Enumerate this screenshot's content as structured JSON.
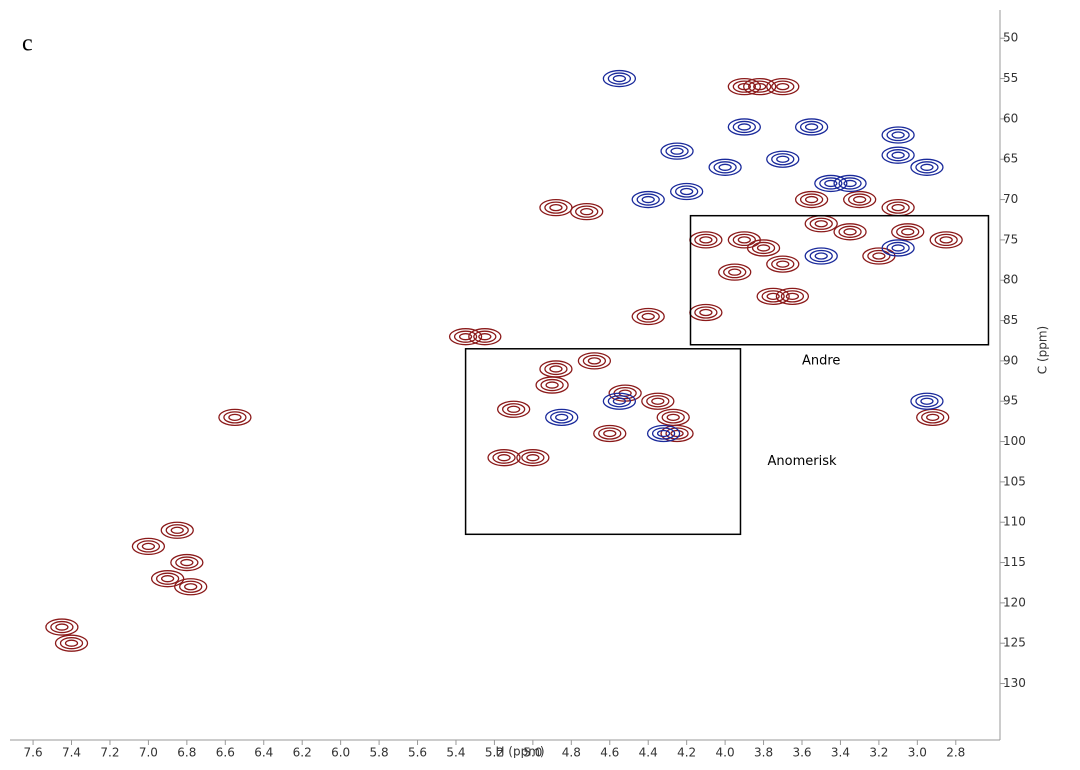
{
  "chart_data": {
    "type": "contour-peaks",
    "panel_label": "c",
    "x_label": "H (ppm)",
    "y_label": "C (ppm)",
    "xlim": [
      7.72,
      2.57
    ],
    "ylim": [
      137,
      46.5
    ],
    "xticks": [
      7.6,
      7.4,
      7.2,
      {
        "value": 7,
        "label": "7.0"
      },
      6.8,
      6.6,
      6.4,
      6.2,
      {
        "value": 6,
        "label": "6.0"
      },
      5.8,
      5.6,
      5.4,
      5.2,
      {
        "value": 5,
        "label": "5.0"
      },
      4.8,
      4.6,
      4.4,
      4.2,
      {
        "value": 4,
        "label": "4.0"
      },
      3.8,
      3.6,
      3.4,
      3.2,
      {
        "value": 3,
        "label": "3.0"
      },
      2.8
    ],
    "yticks": [
      50,
      55,
      60,
      65,
      70,
      75,
      80,
      85,
      90,
      95,
      100,
      105,
      110,
      115,
      120,
      125,
      130
    ],
    "series": [
      {
        "color": "#8b1a1a",
        "x": [
          6.85,
          6.8,
          6.78,
          7.0,
          6.9,
          7.4,
          7.45,
          6.55,
          5.35,
          5.25,
          4.88,
          4.72,
          4.9,
          4.88,
          4.68,
          4.52,
          4.35,
          4.27,
          4.25,
          5.15,
          5.0,
          4.6,
          5.1,
          4.4,
          4.1,
          3.82,
          3.9,
          3.7,
          4.1,
          3.9,
          3.8,
          3.55,
          3.3,
          3.1,
          3.5,
          3.2,
          3.05,
          2.85,
          3.75,
          3.95,
          3.65,
          2.92,
          3.7,
          3.35
        ],
        "values": [
          111,
          115,
          118,
          113,
          117,
          125,
          123,
          97,
          87,
          87,
          71,
          71.5,
          93,
          91,
          90,
          94,
          95,
          97,
          99,
          102,
          102,
          99,
          96,
          84.5,
          84,
          56,
          56,
          56,
          75,
          75,
          76,
          70,
          70,
          71,
          73,
          77,
          74,
          75,
          82,
          79,
          82,
          97,
          78,
          74
        ]
      },
      {
        "color": "#1a2a9b",
        "x": [
          4.55,
          3.9,
          3.55,
          3.1,
          4.25,
          4.0,
          3.7,
          3.45,
          3.1,
          2.95,
          4.4,
          4.2,
          3.5,
          3.1,
          2.95,
          4.32,
          4.85,
          4.55,
          3.35
        ],
        "values": [
          55,
          61,
          61,
          62,
          64,
          66,
          65,
          68,
          64.5,
          66,
          70,
          69,
          77,
          76,
          95,
          99,
          97,
          95,
          68
        ]
      }
    ],
    "annotations": [
      {
        "text": "Andre",
        "x": 3.5,
        "y": 90,
        "xrange": [
          4.18,
          2.63
        ],
        "yrange": [
          72,
          88
        ]
      },
      {
        "text": "Anomerisk",
        "x": 3.6,
        "y": 102.5,
        "xrange": [
          5.35,
          3.92
        ],
        "yrange": [
          88.5,
          111.5
        ]
      }
    ]
  }
}
